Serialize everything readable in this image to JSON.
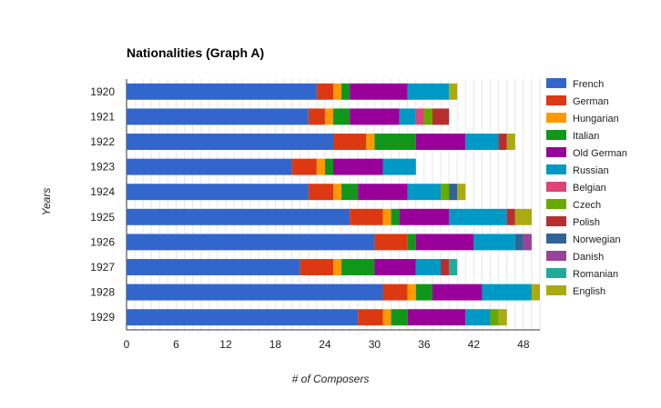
{
  "chart_data": {
    "type": "bar",
    "orientation": "horizontal",
    "stacked": true,
    "title": "Nationalities (Graph A)",
    "xlabel": "# of Composers",
    "ylabel": "Years",
    "xlim": [
      0,
      50
    ],
    "xticks": [
      0,
      6,
      12,
      18,
      24,
      30,
      36,
      42,
      48
    ],
    "grid": true,
    "legend_position": "right",
    "categories": [
      "1920",
      "1921",
      "1922",
      "1923",
      "1924",
      "1925",
      "1926",
      "1927",
      "1928",
      "1929"
    ],
    "series": [
      {
        "name": "French",
        "color": "#3366cc",
        "values": [
          23,
          22,
          25,
          20,
          22,
          27,
          30,
          21,
          31,
          28
        ]
      },
      {
        "name": "German",
        "color": "#dc3912",
        "values": [
          2,
          2,
          4,
          3,
          3,
          4,
          4,
          4,
          3,
          3
        ]
      },
      {
        "name": "Hungarian",
        "color": "#ff9900",
        "values": [
          1,
          1,
          1,
          1,
          1,
          1,
          0,
          1,
          1,
          1
        ]
      },
      {
        "name": "Italian",
        "color": "#109618",
        "values": [
          1,
          2,
          5,
          1,
          2,
          1,
          1,
          4,
          2,
          2
        ]
      },
      {
        "name": "Old German",
        "color": "#990099",
        "values": [
          7,
          6,
          6,
          6,
          6,
          6,
          7,
          5,
          6,
          7
        ]
      },
      {
        "name": "Russian",
        "color": "#0099c6",
        "values": [
          5,
          2,
          4,
          4,
          4,
          7,
          5,
          3,
          6,
          3
        ]
      },
      {
        "name": "Belgian",
        "color": "#dd4477",
        "values": [
          0,
          1,
          0,
          0,
          0,
          0,
          0,
          0,
          0,
          0
        ]
      },
      {
        "name": "Czech",
        "color": "#66aa00",
        "values": [
          0,
          1,
          0,
          0,
          1,
          0,
          0,
          0,
          0,
          1
        ]
      },
      {
        "name": "Polish",
        "color": "#b82e2e",
        "values": [
          0,
          2,
          1,
          0,
          0,
          1,
          0,
          1,
          0,
          0
        ]
      },
      {
        "name": "Norwegian",
        "color": "#316395",
        "values": [
          0,
          0,
          0,
          0,
          1,
          0,
          1,
          0,
          0,
          0
        ]
      },
      {
        "name": "Danish",
        "color": "#994499",
        "values": [
          0,
          0,
          0,
          0,
          0,
          0,
          1,
          0,
          0,
          0
        ]
      },
      {
        "name": "Romanian",
        "color": "#22aa99",
        "values": [
          0,
          0,
          0,
          0,
          0,
          0,
          0,
          1,
          0,
          0
        ]
      },
      {
        "name": "English",
        "color": "#aaaa11",
        "values": [
          1,
          0,
          1,
          0,
          1,
          2,
          0,
          0,
          1,
          1
        ]
      }
    ]
  }
}
